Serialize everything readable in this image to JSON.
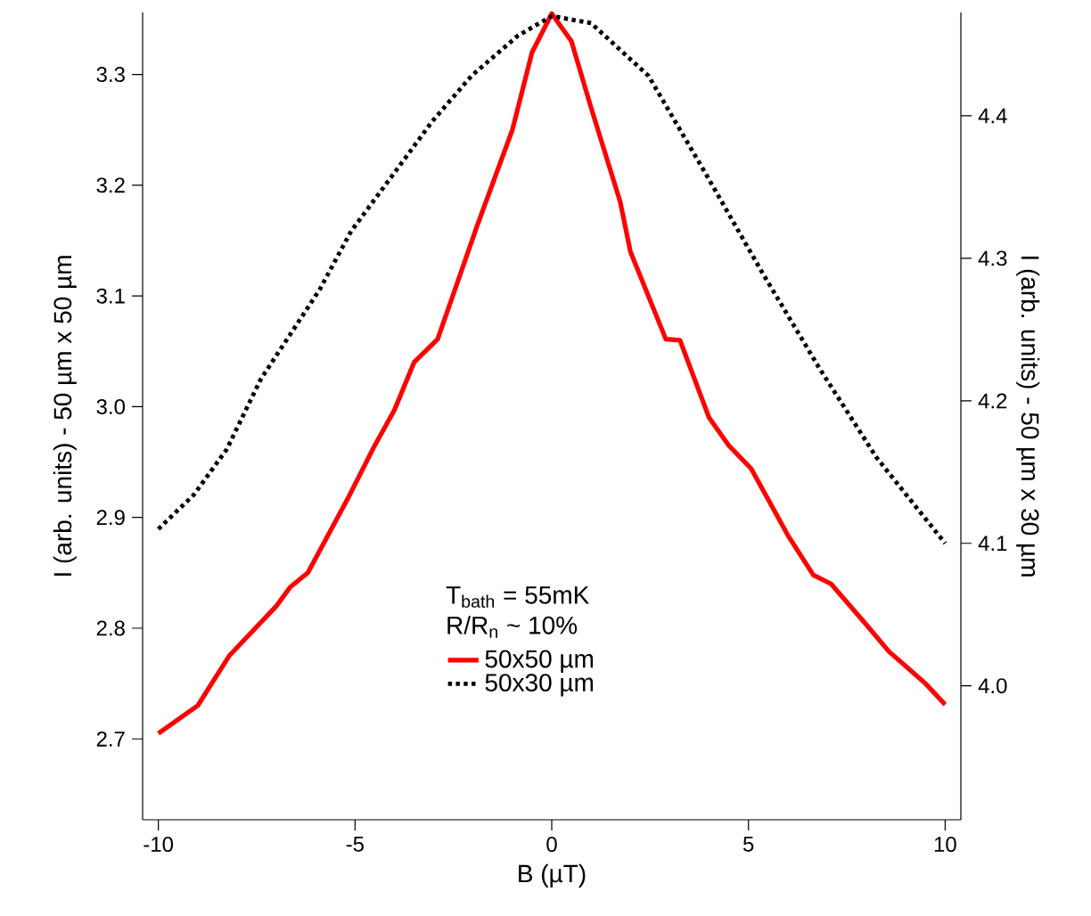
{
  "chart_data": {
    "type": "line",
    "xlabel": "B (µT)",
    "ylabel": "I (arb. units)  - 50 µm x 50 µm",
    "y2label": "I (arb. units) - 50 µm x 30 µm",
    "xlim": [
      -10.4,
      10.4
    ],
    "ylim": [
      2.627,
      3.356
    ],
    "y2lim": [
      3.906,
      4.4725
    ],
    "xticks": [
      -10,
      -5,
      0,
      5,
      10
    ],
    "yticks": [
      {
        "value": 2.7,
        "label": "2.7"
      },
      {
        "value": 2.8,
        "label": "2.8"
      },
      {
        "value": 2.9,
        "label": "2.9"
      },
      {
        "value": 3.0,
        "label": "3.0"
      },
      {
        "value": 3.1,
        "label": "3.1"
      },
      {
        "value": 3.2,
        "label": "3.2"
      },
      {
        "value": 3.3,
        "label": "3.3"
      }
    ],
    "y2ticks": [
      {
        "value": 4.0,
        "label": "4.0"
      },
      {
        "value": 4.1,
        "label": "4.1"
      },
      {
        "value": 4.2,
        "label": "4.2"
      },
      {
        "value": 4.3,
        "label": "4.3"
      },
      {
        "value": 4.4,
        "label": "4.4"
      }
    ],
    "annotations": [
      "T$_{bath}$ =  55mK",
      "R/R$_{n}$ ~ 10%"
    ],
    "legend": "bottom",
    "marker": "none",
    "series": [
      {
        "name": "50x50 µm",
        "color": "#ff0000",
        "line_style": "solid",
        "x": [
          -10,
          -9,
          -8.2,
          -7,
          -6.65,
          -6.2,
          -5.2,
          -4.5,
          -4,
          -3.5,
          -2.9,
          -1.9,
          -1,
          -0.5,
          0,
          0.5,
          1,
          1.74,
          2,
          2.9,
          3.26,
          4,
          4.5,
          5.07,
          6,
          6.65,
          7.1,
          8,
          8.57,
          9.5,
          10
        ],
        "values": [
          2.705,
          2.73,
          2.775,
          2.82,
          2.837,
          2.85,
          2.916,
          2.965,
          2.997,
          3.04,
          3.061,
          3.163,
          3.25,
          3.32,
          3.355,
          3.33,
          3.27,
          3.185,
          3.14,
          3.061,
          3.06,
          2.99,
          2.965,
          2.944,
          2.884,
          2.848,
          2.84,
          2.803,
          2.779,
          2.75,
          2.731
        ]
      },
      {
        "name": "50x30 µm",
        "color": "#000000",
        "line_style": "dotted",
        "axis": "y2",
        "x": [
          -10,
          -9.1,
          -8.26,
          -7.4,
          -5.9,
          -5.1,
          -4,
          -3.04,
          -2.04,
          -0.87,
          0,
          1,
          2.46,
          3.9,
          5.35,
          6.8,
          8.26,
          10
        ],
        "values": [
          4.11,
          4.134,
          4.166,
          4.215,
          4.278,
          4.319,
          4.36,
          4.396,
          4.428,
          4.456,
          4.47,
          4.465,
          4.428,
          4.36,
          4.29,
          4.223,
          4.16,
          4.1
        ]
      }
    ]
  }
}
